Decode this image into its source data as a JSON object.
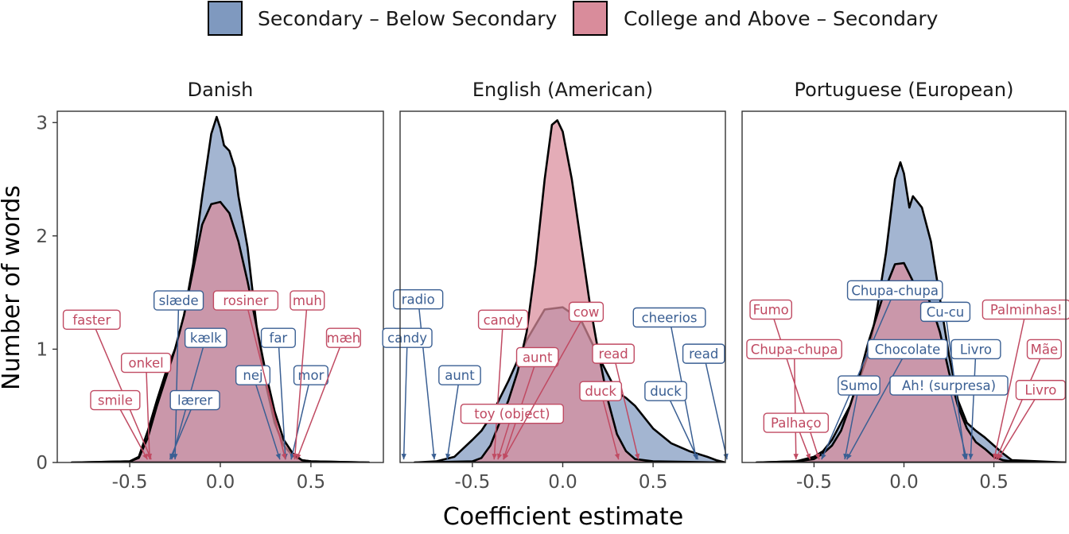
{
  "colors": {
    "secondary_below": "#7f99bf",
    "college_secondary": "#d98c9b",
    "label_blue": "#3a5f93",
    "label_red": "#c04a62",
    "outline": "#000000",
    "panel_border": "#333333"
  },
  "legend": {
    "items": [
      {
        "key": "secondary_below",
        "label": "Secondary – Below Secondary"
      },
      {
        "key": "college_secondary",
        "label": "College and Above – Secondary"
      }
    ]
  },
  "axes": {
    "xlabel": "Coefficient estimate",
    "ylabel": "Number of words"
  },
  "chart_data": {
    "type": "area",
    "subtype": "density",
    "xlim": [
      -0.9,
      0.9
    ],
    "ylim": [
      0,
      3.1
    ],
    "x_ticks": [
      -0.5,
      0.0,
      0.5
    ],
    "x_tick_labels": [
      "-0.5",
      "0.0",
      "0.5"
    ],
    "y_ticks": [
      0,
      1,
      2,
      3
    ],
    "y_tick_labels": [
      "0",
      "1",
      "2",
      "3"
    ],
    "grid": false,
    "legend_position": "top",
    "facets": [
      {
        "title": "Danish",
        "series": [
          {
            "name": "Secondary – Below Secondary",
            "key": "secondary_below",
            "x": [
              -0.82,
              -0.5,
              -0.45,
              -0.4,
              -0.35,
              -0.3,
              -0.25,
              -0.2,
              -0.15,
              -0.1,
              -0.05,
              -0.02,
              0.0,
              0.02,
              0.05,
              0.08,
              0.1,
              0.15,
              0.2,
              0.25,
              0.3,
              0.35,
              0.4,
              0.45,
              0.5,
              0.82
            ],
            "y": [
              0,
              0.01,
              0.05,
              0.28,
              0.55,
              0.8,
              1.0,
              1.3,
              1.75,
              2.35,
              2.9,
              3.05,
              2.95,
              2.8,
              2.75,
              2.6,
              2.35,
              1.9,
              1.2,
              0.7,
              0.35,
              0.15,
              0.06,
              0.02,
              0.01,
              0
            ]
          },
          {
            "name": "College and Above – Secondary",
            "key": "college_secondary",
            "x": [
              -0.82,
              -0.5,
              -0.45,
              -0.4,
              -0.35,
              -0.3,
              -0.25,
              -0.2,
              -0.15,
              -0.1,
              -0.05,
              0.0,
              0.05,
              0.1,
              0.15,
              0.2,
              0.25,
              0.3,
              0.35,
              0.4,
              0.45,
              0.5,
              0.82
            ],
            "y": [
              0,
              0.01,
              0.04,
              0.22,
              0.5,
              0.75,
              1.0,
              1.3,
              1.7,
              2.1,
              2.28,
              2.3,
              2.2,
              1.95,
              1.6,
              1.2,
              0.8,
              0.45,
              0.2,
              0.08,
              0.02,
              0.01,
              0
            ]
          }
        ],
        "annotations": [
          {
            "text": "slæde",
            "group": "secondary_below",
            "x": -0.23,
            "y": 1.43,
            "tx": -0.25,
            "ty": 0.02
          },
          {
            "text": "kælk",
            "group": "secondary_below",
            "x": -0.08,
            "y": 1.1,
            "tx": -0.27,
            "ty": 0.02
          },
          {
            "text": "lærer",
            "group": "secondary_below",
            "x": -0.14,
            "y": 0.55,
            "tx": -0.28,
            "ty": 0.02
          },
          {
            "text": "far",
            "group": "secondary_below",
            "x": 0.32,
            "y": 1.1,
            "tx": 0.36,
            "ty": 0.02
          },
          {
            "text": "nej",
            "group": "secondary_below",
            "x": 0.18,
            "y": 0.77,
            "tx": 0.33,
            "ty": 0.02
          },
          {
            "text": "mor",
            "group": "secondary_below",
            "x": 0.5,
            "y": 0.77,
            "tx": 0.39,
            "ty": 0.02
          },
          {
            "text": "faster",
            "group": "college_secondary",
            "x": -0.71,
            "y": 1.26,
            "tx": -0.38,
            "ty": 0.02
          },
          {
            "text": "onkel",
            "group": "college_secondary",
            "x": -0.41,
            "y": 0.88,
            "tx": -0.39,
            "ty": 0.02
          },
          {
            "text": "smile",
            "group": "college_secondary",
            "x": -0.58,
            "y": 0.55,
            "tx": -0.4,
            "ty": 0.02
          },
          {
            "text": "rosiner",
            "group": "college_secondary",
            "x": 0.14,
            "y": 1.43,
            "tx": 0.36,
            "ty": 0.02
          },
          {
            "text": "muh",
            "group": "college_secondary",
            "x": 0.48,
            "y": 1.43,
            "tx": 0.41,
            "ty": 0.02
          },
          {
            "text": "mæh",
            "group": "college_secondary",
            "x": 0.68,
            "y": 1.1,
            "tx": 0.42,
            "ty": 0.02
          }
        ]
      },
      {
        "title": "English (American)",
        "series": [
          {
            "name": "Secondary – Below Secondary",
            "key": "secondary_below",
            "x": [
              -0.82,
              -0.7,
              -0.6,
              -0.5,
              -0.45,
              -0.4,
              -0.3,
              -0.2,
              -0.1,
              0.0,
              0.1,
              0.2,
              0.3,
              0.35,
              0.4,
              0.5,
              0.6,
              0.7,
              0.8,
              0.85,
              0.9
            ],
            "y": [
              0,
              0.01,
              0.05,
              0.2,
              0.28,
              0.4,
              0.72,
              1.08,
              1.35,
              1.37,
              1.26,
              0.93,
              0.62,
              0.57,
              0.5,
              0.3,
              0.17,
              0.1,
              0.05,
              0.02,
              0
            ]
          },
          {
            "name": "College and Above – Secondary",
            "key": "college_secondary",
            "x": [
              -0.82,
              -0.5,
              -0.45,
              -0.4,
              -0.35,
              -0.3,
              -0.25,
              -0.2,
              -0.15,
              -0.1,
              -0.06,
              -0.03,
              0.0,
              0.05,
              0.1,
              0.15,
              0.2,
              0.25,
              0.3,
              0.35,
              0.4,
              0.5,
              0.9
            ],
            "y": [
              0,
              0.01,
              0.04,
              0.15,
              0.35,
              0.55,
              0.8,
              1.15,
              1.75,
              2.5,
              2.98,
              3.02,
              2.92,
              2.5,
              1.95,
              1.4,
              0.95,
              0.55,
              0.25,
              0.1,
              0.03,
              0.01,
              0
            ]
          }
        ],
        "annotations": [
          {
            "text": "radio",
            "group": "secondary_below",
            "x": -0.8,
            "y": 1.44,
            "tx": -0.71,
            "ty": 0.02
          },
          {
            "text": "candy",
            "group": "secondary_below",
            "x": -0.86,
            "y": 1.1,
            "tx": -0.88,
            "ty": 0.02
          },
          {
            "text": "aunt",
            "group": "secondary_below",
            "x": -0.57,
            "y": 0.77,
            "tx": -0.64,
            "ty": 0.02
          },
          {
            "text": "cheerios",
            "group": "secondary_below",
            "x": 0.59,
            "y": 1.28,
            "tx": 0.74,
            "ty": 0.02
          },
          {
            "text": "read",
            "group": "secondary_below",
            "x": 0.78,
            "y": 0.96,
            "tx": 0.91,
            "ty": 0.02
          },
          {
            "text": "duck",
            "group": "secondary_below",
            "x": 0.57,
            "y": 0.63,
            "tx": 0.75,
            "ty": 0.02
          },
          {
            "text": "candy",
            "group": "college_secondary",
            "x": -0.33,
            "y": 1.26,
            "tx": -0.38,
            "ty": 0.02
          },
          {
            "text": "aunt",
            "group": "college_secondary",
            "x": -0.14,
            "y": 0.93,
            "tx": -0.33,
            "ty": 0.02
          },
          {
            "text": "toy (object)",
            "group": "college_secondary",
            "x": -0.28,
            "y": 0.43,
            "tx": -0.36,
            "ty": 0.02
          },
          {
            "text": "cow",
            "group": "college_secondary",
            "x": 0.13,
            "y": 1.33,
            "tx": -0.33,
            "ty": 0.02
          },
          {
            "text": "read",
            "group": "college_secondary",
            "x": 0.28,
            "y": 0.96,
            "tx": 0.42,
            "ty": 0.02
          },
          {
            "text": "duck",
            "group": "college_secondary",
            "x": 0.21,
            "y": 0.63,
            "tx": 0.31,
            "ty": 0.02
          }
        ]
      },
      {
        "title": "Portuguese (European)",
        "series": [
          {
            "name": "Secondary – Below Secondary",
            "key": "secondary_below",
            "x": [
              -0.82,
              -0.6,
              -0.5,
              -0.45,
              -0.4,
              -0.3,
              -0.2,
              -0.15,
              -0.1,
              -0.05,
              -0.02,
              0.0,
              0.03,
              0.05,
              0.1,
              0.15,
              0.2,
              0.25,
              0.3,
              0.35,
              0.4,
              0.45,
              0.5,
              0.55,
              0.6,
              0.9
            ],
            "y": [
              0,
              0.01,
              0.05,
              0.1,
              0.2,
              0.5,
              0.95,
              1.35,
              1.85,
              2.5,
              2.65,
              2.55,
              2.25,
              2.35,
              2.25,
              1.95,
              1.45,
              0.95,
              0.55,
              0.35,
              0.28,
              0.22,
              0.15,
              0.08,
              0.02,
              0
            ]
          },
          {
            "name": "College and Above – Secondary",
            "key": "college_secondary",
            "x": [
              -0.82,
              -0.6,
              -0.5,
              -0.45,
              -0.4,
              -0.35,
              -0.3,
              -0.25,
              -0.2,
              -0.15,
              -0.1,
              -0.05,
              0.0,
              0.05,
              0.1,
              0.15,
              0.2,
              0.25,
              0.3,
              0.35,
              0.4,
              0.45,
              0.5,
              0.55,
              0.6,
              0.9
            ],
            "y": [
              0,
              0.01,
              0.03,
              0.08,
              0.15,
              0.28,
              0.5,
              0.75,
              1.05,
              1.3,
              1.55,
              1.75,
              1.76,
              1.6,
              1.55,
              1.4,
              1.15,
              0.8,
              0.5,
              0.3,
              0.18,
              0.12,
              0.05,
              0.02,
              0.01,
              0
            ]
          }
        ],
        "annotations": [
          {
            "text": "Chupa-chupa",
            "group": "secondary_below",
            "x": -0.05,
            "y": 1.52,
            "tx": -0.46,
            "ty": 0.02
          },
          {
            "text": "Cu-cu",
            "group": "secondary_below",
            "x": 0.23,
            "y": 1.33,
            "tx": 0.34,
            "ty": 0.02
          },
          {
            "text": "Chocolate",
            "group": "secondary_below",
            "x": 0.02,
            "y": 1.0,
            "tx": -0.32,
            "ty": 0.02
          },
          {
            "text": "Livro",
            "group": "secondary_below",
            "x": 0.4,
            "y": 1.0,
            "tx": 0.37,
            "ty": 0.02
          },
          {
            "text": "Sumo",
            "group": "secondary_below",
            "x": -0.25,
            "y": 0.68,
            "tx": -0.33,
            "ty": 0.02
          },
          {
            "text": "Ah! (surpresa)",
            "group": "secondary_below",
            "x": 0.25,
            "y": 0.68,
            "tx": 0.35,
            "ty": 0.02
          },
          {
            "text": "Fumo",
            "group": "college_secondary",
            "x": -0.74,
            "y": 1.35,
            "tx": -0.47,
            "ty": 0.02
          },
          {
            "text": "Chupa-chupa",
            "group": "college_secondary",
            "x": -0.61,
            "y": 1.0,
            "tx": -0.6,
            "ty": 0.02
          },
          {
            "text": "Palhaço",
            "group": "college_secondary",
            "x": -0.6,
            "y": 0.35,
            "tx": -0.52,
            "ty": 0.02
          },
          {
            "text": "Palminhas!",
            "group": "college_secondary",
            "x": 0.68,
            "y": 1.35,
            "tx": 0.5,
            "ty": 0.02
          },
          {
            "text": "Mãe",
            "group": "college_secondary",
            "x": 0.78,
            "y": 1.0,
            "tx": 0.51,
            "ty": 0.02
          },
          {
            "text": "Livro",
            "group": "college_secondary",
            "x": 0.76,
            "y": 0.64,
            "tx": 0.52,
            "ty": 0.02
          }
        ]
      }
    ]
  }
}
